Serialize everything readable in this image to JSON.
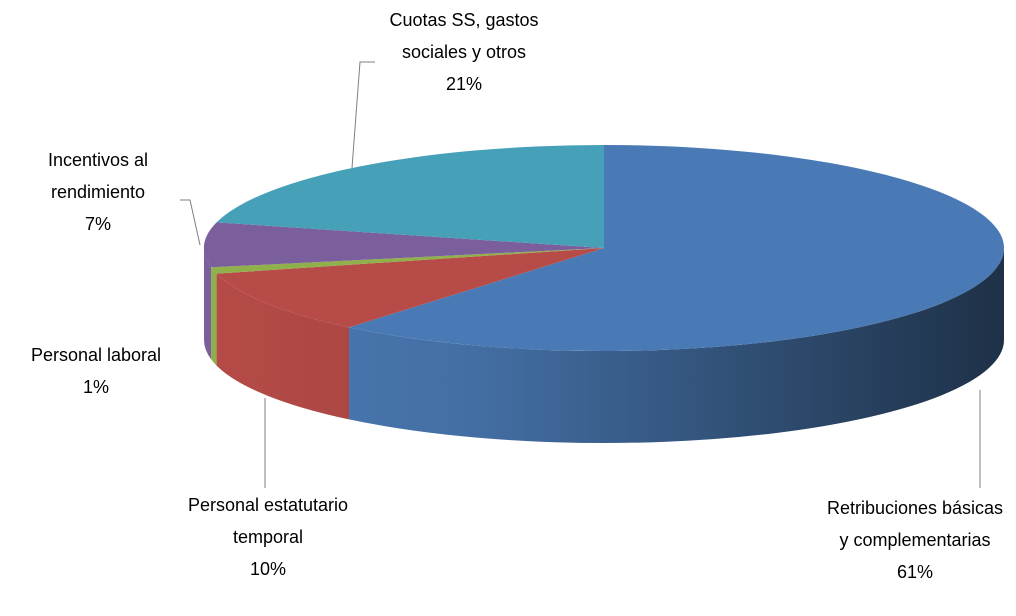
{
  "chart_data": {
    "type": "pie3d",
    "categories": [
      "Retribuciones básicas y complementarias",
      "Personal estatutario temporal",
      "Personal laboral",
      "Incentivos al rendimiento",
      "Cuotas SS, gastos sociales y otros"
    ],
    "values": [
      61,
      10,
      1,
      7,
      21
    ],
    "value_labels": [
      "61%",
      "10%",
      "1%",
      "7%",
      "21%"
    ],
    "colors": [
      "#4a7ab5",
      "#b64b47",
      "#8fb04b",
      "#7b5f9c",
      "#45a0b8"
    ]
  }
}
